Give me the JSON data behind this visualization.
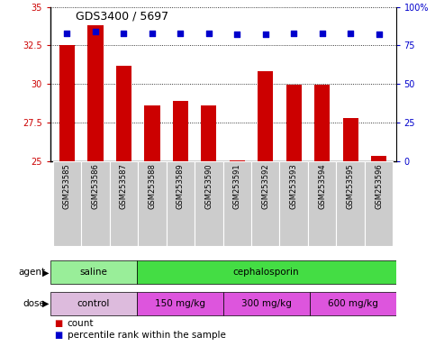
{
  "title": "GDS3400 / 5697",
  "samples": [
    "GSM253585",
    "GSM253586",
    "GSM253587",
    "GSM253588",
    "GSM253589",
    "GSM253590",
    "GSM253591",
    "GSM253592",
    "GSM253593",
    "GSM253594",
    "GSM253595",
    "GSM253596"
  ],
  "bar_values": [
    32.5,
    33.8,
    31.2,
    28.6,
    28.9,
    28.6,
    25.05,
    30.8,
    29.95,
    29.95,
    27.8,
    25.3
  ],
  "percentile_values": [
    83,
    84,
    83,
    83,
    83,
    83,
    82,
    82,
    83,
    83,
    83,
    82
  ],
  "bar_color": "#cc0000",
  "dot_color": "#0000cc",
  "ylim_left": [
    25,
    35
  ],
  "ylim_right": [
    0,
    100
  ],
  "yticks_left": [
    25,
    27.5,
    30,
    32.5,
    35
  ],
  "ytick_labels_left": [
    "25",
    "27.5",
    "30",
    "32.5",
    "35"
  ],
  "yticks_right": [
    0,
    25,
    50,
    75,
    100
  ],
  "ytick_labels_right": [
    "0",
    "25",
    "50",
    "75",
    "100%"
  ],
  "agent_labels": [
    {
      "text": "saline",
      "start": 0,
      "end": 3,
      "color": "#99ee99"
    },
    {
      "text": "cephalosporin",
      "start": 3,
      "end": 12,
      "color": "#44dd44"
    }
  ],
  "dose_labels": [
    {
      "text": "control",
      "start": 0,
      "end": 3,
      "color": "#ddbbdd"
    },
    {
      "text": "150 mg/kg",
      "start": 3,
      "end": 6,
      "color": "#dd55dd"
    },
    {
      "text": "300 mg/kg",
      "start": 6,
      "end": 9,
      "color": "#dd55dd"
    },
    {
      "text": "600 mg/kg",
      "start": 9,
      "end": 12,
      "color": "#dd55dd"
    }
  ],
  "legend_count_color": "#cc0000",
  "legend_pct_color": "#0000cc",
  "bg_color": "#ffffff",
  "tick_area_bg": "#cccccc",
  "grid_color": "#000000",
  "left_axis_color": "#cc0000",
  "right_axis_color": "#0000cc"
}
